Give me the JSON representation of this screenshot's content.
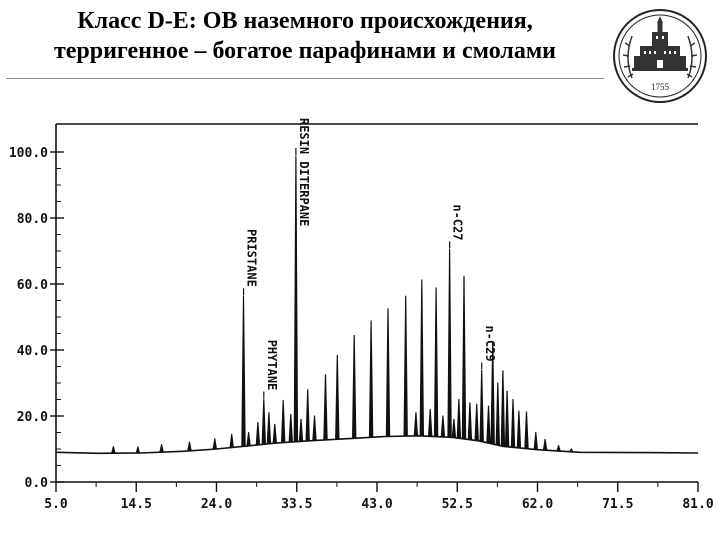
{
  "slide": {
    "title_line1": "Класс D-E: ОВ наземного происхождения,",
    "title_line2": "терригенное – богатое парафинами и смолами",
    "seal_text": "1755"
  },
  "chart_data": {
    "type": "line",
    "title": "",
    "xlabel": "",
    "ylabel": "",
    "xlim": [
      5.0,
      81.0
    ],
    "ylim": [
      0.0,
      100.0
    ],
    "x_ticks": [
      {
        "value": 5.0,
        "label": "5.0"
      },
      {
        "value": 14.5,
        "label": "14.5"
      },
      {
        "value": 24.0,
        "label": "24.0"
      },
      {
        "value": 33.5,
        "label": "33.5"
      },
      {
        "value": 43.0,
        "label": "43.0"
      },
      {
        "value": 52.5,
        "label": "52.5"
      },
      {
        "value": 62.0,
        "label": "62.0"
      },
      {
        "value": 71.5,
        "label": "71.5"
      },
      {
        "value": 81.0,
        "label": "81.0"
      }
    ],
    "y_ticks": [
      {
        "value": 0,
        "label": "0.0"
      },
      {
        "value": 20,
        "label": "20.0"
      },
      {
        "value": 40,
        "label": "40.0"
      },
      {
        "value": 60,
        "label": "60.0"
      },
      {
        "value": 80,
        "label": "80.0"
      },
      {
        "value": 100,
        "label": "100.0"
      }
    ],
    "grid": false,
    "baseline": [
      [
        5.0,
        9.0
      ],
      [
        10.0,
        8.7
      ],
      [
        15.0,
        8.8
      ],
      [
        20.0,
        9.3
      ],
      [
        24.0,
        10.0
      ],
      [
        28.0,
        11.0
      ],
      [
        31.0,
        11.8
      ],
      [
        35.0,
        12.5
      ],
      [
        40.0,
        13.2
      ],
      [
        44.0,
        13.8
      ],
      [
        48.0,
        14.0
      ],
      [
        52.0,
        13.5
      ],
      [
        55.0,
        12.5
      ],
      [
        58.0,
        10.8
      ],
      [
        62.0,
        9.8
      ],
      [
        67.0,
        9.0
      ],
      [
        75.0,
        8.9
      ],
      [
        81.0,
        8.8
      ]
    ],
    "peaks": [
      [
        11.8,
        10.7
      ],
      [
        14.7,
        10.6
      ],
      [
        17.5,
        11.3
      ],
      [
        20.8,
        12.1
      ],
      [
        23.8,
        13.1
      ],
      [
        25.8,
        14.4
      ],
      [
        27.2,
        56.3
      ],
      [
        27.8,
        15.0
      ],
      [
        28.9,
        18.0
      ],
      [
        29.6,
        25.0
      ],
      [
        30.2,
        21.0
      ],
      [
        30.9,
        17.5
      ],
      [
        31.9,
        24.7
      ],
      [
        32.8,
        20.5
      ],
      [
        33.4,
        98.8
      ],
      [
        34.0,
        19.0
      ],
      [
        34.8,
        28.0
      ],
      [
        35.6,
        20.0
      ],
      [
        36.9,
        32.5
      ],
      [
        38.3,
        38.4
      ],
      [
        40.3,
        44.4
      ],
      [
        42.3,
        48.8
      ],
      [
        44.3,
        52.5
      ],
      [
        46.4,
        56.3
      ],
      [
        47.6,
        21.0
      ],
      [
        48.3,
        61.2
      ],
      [
        49.3,
        22.0
      ],
      [
        50.0,
        58.8
      ],
      [
        50.8,
        20.0
      ],
      [
        51.6,
        70.5
      ],
      [
        52.1,
        19.0
      ],
      [
        52.7,
        25.0
      ],
      [
        53.3,
        62.3
      ],
      [
        54.0,
        24.0
      ],
      [
        54.8,
        23.5
      ],
      [
        55.4,
        33.8
      ],
      [
        56.2,
        23.0
      ],
      [
        56.7,
        42.5
      ],
      [
        57.3,
        30.0
      ],
      [
        57.9,
        33.7
      ],
      [
        58.4,
        27.5
      ],
      [
        59.1,
        25.0
      ],
      [
        59.8,
        21.5
      ],
      [
        60.7,
        21.2
      ],
      [
        61.8,
        15.0
      ],
      [
        62.9,
        12.9
      ],
      [
        64.5,
        11.0
      ],
      [
        66.0,
        10.0
      ]
    ],
    "annotations": [
      {
        "text": "PRISTANE",
        "x": 27.2
      },
      {
        "text": "PHYTANE",
        "x": 29.6
      },
      {
        "text": "RESIN DITERPANE",
        "x": 33.4
      },
      {
        "text": "n-C27",
        "x": 51.6
      },
      {
        "text": "n-C29",
        "x": 55.4
      }
    ]
  }
}
